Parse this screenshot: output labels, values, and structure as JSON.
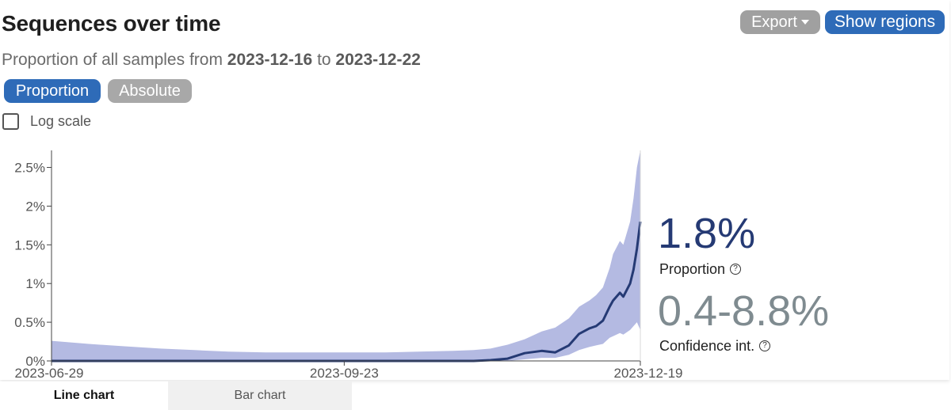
{
  "header": {
    "title": "Sequences over time",
    "subtitle_prefix": "Proportion of all samples from",
    "date_from": "2023-12-16",
    "subtitle_to": "to",
    "date_to": "2023-12-22",
    "export_label": "Export",
    "show_regions_label": "Show regions"
  },
  "controls": {
    "proportion_label": "Proportion",
    "absolute_label": "Absolute",
    "log_scale_label": "Log scale",
    "log_scale_checked": false
  },
  "summary": {
    "proportion_value": "1.8%",
    "proportion_label": "Proportion",
    "ci_value": "0.4-8.8%",
    "ci_label": "Confidence int."
  },
  "tabs": {
    "line_chart": "Line chart",
    "bar_chart": "Bar chart"
  },
  "colors": {
    "line": "#253a74",
    "band": "#b4bae2",
    "primary_button": "#2e6bb8",
    "secondary_button": "#a0a0a0",
    "ci_text": "#7f8b90"
  },
  "chart_data": {
    "type": "line",
    "series_kind": "proportion with confidence interval band",
    "x_start": "2023-06-29",
    "x_end": "2023-12-19",
    "x_tick_labels": [
      "2023-06-29",
      "2023-09-23",
      "2023-12-19"
    ],
    "y_ticks": [
      0,
      0.005,
      0.01,
      0.015,
      0.02,
      0.025
    ],
    "y_tick_labels": [
      "0%",
      "0.5%",
      "1%",
      "1.5%",
      "2%",
      "2.5%"
    ],
    "ylim": [
      0,
      0.0272
    ],
    "log_scale": false,
    "grid": false,
    "series": [
      {
        "dates": [
          "2023-06-29",
          "2023-07-10",
          "2023-07-20",
          "2023-07-31",
          "2023-08-10",
          "2023-08-20",
          "2023-08-31",
          "2023-09-10",
          "2023-09-23",
          "2023-10-05",
          "2023-10-15",
          "2023-10-25",
          "2023-10-31",
          "2023-11-05",
          "2023-11-10",
          "2023-11-15",
          "2023-11-20",
          "2023-11-24",
          "2023-11-28",
          "2023-12-01",
          "2023-12-04",
          "2023-12-06",
          "2023-12-08",
          "2023-12-10",
          "2023-12-11",
          "2023-12-13",
          "2023-12-14",
          "2023-12-16",
          "2023-12-17",
          "2023-12-18",
          "2023-12-19"
        ],
        "proportion": [
          0.0,
          0.0,
          0.0,
          0.0,
          0.0,
          0.0,
          0.0,
          0.0,
          0.0,
          0.0,
          0.0,
          0.0,
          0.0,
          0.0001,
          0.0003,
          0.001,
          0.0013,
          0.0011,
          0.002,
          0.0035,
          0.0042,
          0.0045,
          0.0052,
          0.007,
          0.0078,
          0.0088,
          0.0083,
          0.01,
          0.0118,
          0.0145,
          0.018
        ],
        "ci_lower": [
          0.0,
          0.0,
          0.0,
          0.0,
          0.0,
          0.0,
          0.0,
          0.0,
          0.0,
          0.0,
          0.0,
          0.0,
          0.0,
          0.0,
          0.0,
          0.0002,
          0.0004,
          0.0004,
          0.0008,
          0.0014,
          0.0018,
          0.002,
          0.0022,
          0.003,
          0.0032,
          0.0036,
          0.0034,
          0.004,
          0.0045,
          0.005,
          0.004
        ],
        "ci_upper": [
          0.0026,
          0.0022,
          0.0019,
          0.0016,
          0.0014,
          0.0012,
          0.0011,
          0.0011,
          0.0011,
          0.0011,
          0.0012,
          0.0013,
          0.0014,
          0.0016,
          0.0021,
          0.0028,
          0.0038,
          0.0043,
          0.0055,
          0.007,
          0.0078,
          0.0085,
          0.0095,
          0.012,
          0.0138,
          0.0155,
          0.015,
          0.018,
          0.021,
          0.025,
          0.0272
        ]
      }
    ]
  }
}
